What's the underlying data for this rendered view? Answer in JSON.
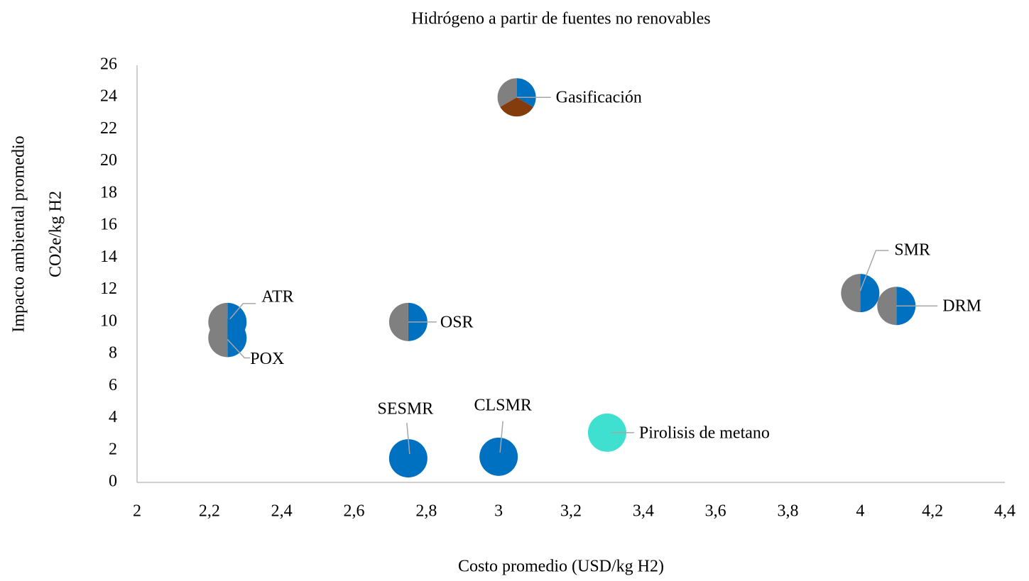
{
  "chart_data": {
    "type": "scatter",
    "title": "Hidrógeno a partir de fuentes no renovables",
    "xlabel": "Costo promedio (USD/kg H2)",
    "ylabel": [
      "Impacto ambiental promedio",
      "CO2e/kg H2"
    ],
    "xlim": [
      2,
      4.4
    ],
    "xticks": [
      2,
      {
        "value": 2.2,
        "label": "2,2"
      },
      {
        "value": 2.4,
        "label": "2,4"
      },
      {
        "value": 2.6,
        "label": "2,6"
      },
      {
        "value": 2.8,
        "label": "2,8"
      },
      3,
      {
        "value": 3.2,
        "label": "3,2"
      },
      {
        "value": 3.4,
        "label": "3,4"
      },
      {
        "value": 3.6,
        "label": "3,6"
      },
      {
        "value": 3.8,
        "label": "3,8"
      },
      4,
      {
        "value": 4.2,
        "label": "4,2"
      },
      {
        "value": 4.4,
        "label": "4,4"
      }
    ],
    "ylim": [
      0,
      26
    ],
    "yticks": [
      0,
      2,
      4,
      6,
      8,
      10,
      12,
      14,
      16,
      18,
      20,
      22,
      24,
      26
    ],
    "grid": false,
    "points": [
      {
        "label": "Gasificación",
        "x": 3.05,
        "y": 24,
        "slices": [
          {
            "color": "#0070c0",
            "value": 1
          },
          {
            "color": "#843c0c",
            "value": 1
          },
          {
            "color": "#808080",
            "value": 1
          }
        ]
      },
      {
        "label": "ATR",
        "x": 2.25,
        "y": 10,
        "slices": [
          {
            "color": "#0070c0",
            "value": 1
          },
          {
            "color": "#808080",
            "value": 1
          }
        ]
      },
      {
        "label": "POX",
        "x": 2.25,
        "y": 9,
        "slices": [
          {
            "color": "#0070c0",
            "value": 1
          },
          {
            "color": "#808080",
            "value": 1
          }
        ]
      },
      {
        "label": "OSR",
        "x": 2.75,
        "y": 10,
        "slices": [
          {
            "color": "#0070c0",
            "value": 1
          },
          {
            "color": "#808080",
            "value": 1
          }
        ]
      },
      {
        "label": "SESMR",
        "x": 2.75,
        "y": 1.5,
        "slices": [
          {
            "color": "#0070c0",
            "value": 1
          }
        ]
      },
      {
        "label": "CLSMR",
        "x": 3.0,
        "y": 1.6,
        "slices": [
          {
            "color": "#0070c0",
            "value": 1
          }
        ]
      },
      {
        "label": "Pirolisis de metano",
        "x": 3.3,
        "y": 3.1,
        "slices": [
          {
            "color": "#40e0d0",
            "value": 1
          }
        ]
      },
      {
        "label": "SMR",
        "x": 4.0,
        "y": 11.8,
        "slices": [
          {
            "color": "#0070c0",
            "value": 1
          },
          {
            "color": "#808080",
            "value": 1
          }
        ]
      },
      {
        "label": "DRM",
        "x": 4.1,
        "y": 11,
        "slices": [
          {
            "color": "#0070c0",
            "value": 1
          },
          {
            "color": "#808080",
            "value": 1
          }
        ]
      }
    ]
  }
}
